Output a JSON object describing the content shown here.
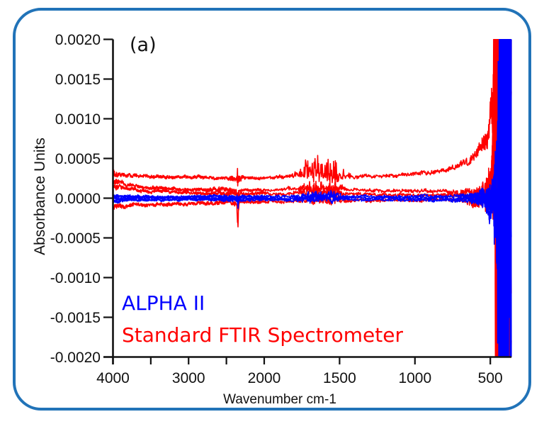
{
  "figure": {
    "panel_label": "(a)",
    "border_color": "#2173b8",
    "background": "#ffffff"
  },
  "chart_data": {
    "type": "line",
    "title": "",
    "panel_label": "(a)",
    "xlabel": "Wavenumber cm-1",
    "ylabel": "Absorbance Units",
    "x_axis": {
      "ticks": [
        4000,
        3500,
        3000,
        2500,
        2000,
        1500,
        1000,
        500
      ],
      "labeled_ticks": [
        4000,
        3000,
        2000,
        1500,
        1000,
        500
      ],
      "tick_labels": [
        "4000",
        "3000",
        "2000",
        "1500",
        "1000",
        "500"
      ],
      "range": [
        4000,
        360
      ],
      "split_at": 2000,
      "scale_note": "wavenumber axis compressed 2x above 2000 cm-1 (OPUS-style split scale)"
    },
    "y_axis": {
      "ticks": [
        0.002,
        0.0015,
        0.001,
        0.0005,
        0.0,
        -0.0005,
        -0.001,
        -0.0015,
        -0.002
      ],
      "tick_labels": [
        "0.0020",
        "0.0015",
        "0.0010",
        "0.0005",
        "0.0000",
        "-0.0005",
        "-0.0010",
        "-0.0015",
        "-0.0020"
      ],
      "range": [
        -0.002,
        0.002
      ]
    },
    "legend": [
      {
        "label": "ALPHA II",
        "color": "#0000ff"
      },
      {
        "label": "Standard FTIR Spectrometer",
        "color": "#ff0000"
      }
    ],
    "grid": false,
    "series": [
      {
        "name": "Standard FTIR Spectrometer",
        "color": "#ff0000",
        "traces": [
          {
            "seed": 101,
            "baseline": [
              [
                4000,
                0.00033
              ],
              [
                3850,
                0.00029
              ],
              [
                3600,
                0.00028
              ],
              [
                3200,
                0.00027
              ],
              [
                2800,
                0.00026
              ],
              [
                2400,
                0.000245
              ],
              [
                2100,
                0.00025
              ],
              [
                2000,
                0.00026
              ],
              [
                1900,
                0.00027
              ],
              [
                1750,
                0.00028
              ],
              [
                1600,
                0.00028
              ],
              [
                1450,
                0.000265
              ],
              [
                1300,
                0.00027
              ],
              [
                1150,
                0.000275
              ],
              [
                1000,
                0.0003
              ],
              [
                900,
                0.00032
              ],
              [
                800,
                0.00037
              ],
              [
                700,
                0.00043
              ],
              [
                640,
                0.0005
              ],
              [
                590,
                0.00058
              ],
              [
                545,
                0.00068
              ],
              [
                510,
                0.00082
              ],
              [
                490,
                0.001
              ],
              [
                475,
                0.0013
              ],
              [
                463,
                0.0019
              ],
              [
                458,
                0.0005
              ],
              [
                360,
                0
              ]
            ],
            "noise_envelope": [
              [
                4000,
                5.5e-05
              ],
              [
                3880,
                3e-05
              ],
              [
                3400,
                2.5e-05
              ],
              [
                2500,
                2.2e-05
              ],
              [
                2380,
                5e-05
              ],
              [
                2320,
                5e-05
              ],
              [
                2250,
                2.2e-05
              ],
              [
                2000,
                2.2e-05
              ],
              [
                1900,
                3e-05
              ],
              [
                1800,
                3.5e-05
              ],
              [
                1700,
                4e-05
              ],
              [
                1450,
                3.5e-05
              ],
              [
                1250,
                2.5e-05
              ],
              [
                1000,
                3e-05
              ],
              [
                850,
                3.5e-05
              ],
              [
                700,
                5e-05
              ],
              [
                600,
                8e-05
              ],
              [
                550,
                0.00012
              ],
              [
                510,
                0.0002
              ],
              [
                488,
                0.0004
              ],
              [
                470,
                0.0012
              ],
              [
                462,
                0.0045
              ],
              [
                360,
                0.0045
              ]
            ],
            "features": {
              "co2": 9e-05,
              "water": 0.00013
            }
          },
          {
            "seed": 202,
            "baseline": [
              [
                4000,
                0.00023
              ],
              [
                3800,
                0.00016
              ],
              [
                3500,
                0.00013
              ],
              [
                3100,
                0.00011
              ],
              [
                2600,
                0.000105
              ],
              [
                2200,
                0.0001
              ],
              [
                2000,
                0.000105
              ],
              [
                1700,
                0.00012
              ],
              [
                1500,
                0.000115
              ],
              [
                1200,
                0.0001
              ],
              [
                1000,
                9e-05
              ],
              [
                800,
                8e-05
              ],
              [
                650,
                8e-05
              ],
              [
                560,
                0.0001
              ],
              [
                500,
                0.00012
              ],
              [
                470,
                0.0003
              ],
              [
                460,
                0
              ],
              [
                360,
                0
              ]
            ],
            "noise_envelope": [
              [
                4000,
                5e-05
              ],
              [
                3880,
                2.8e-05
              ],
              [
                3000,
                2.2e-05
              ],
              [
                2380,
                4e-05
              ],
              [
                2250,
                2e-05
              ],
              [
                2000,
                2e-05
              ],
              [
                1800,
                2.8e-05
              ],
              [
                1450,
                2.8e-05
              ],
              [
                1100,
                2.2e-05
              ],
              [
                800,
                3e-05
              ],
              [
                650,
                5e-05
              ],
              [
                560,
                0.0001
              ],
              [
                500,
                0.00025
              ],
              [
                475,
                0.0009
              ],
              [
                460,
                0.0045
              ],
              [
                360,
                0.0045
              ]
            ],
            "features": {
              "co2": -0.00013,
              "water": 6e-05
            }
          },
          {
            "seed": 303,
            "baseline": [
              [
                4000,
                0.00015
              ],
              [
                3700,
                0.0001
              ],
              [
                3300,
                8e-05
              ],
              [
                2800,
                6e-05
              ],
              [
                2300,
                5.5e-05
              ],
              [
                2000,
                6e-05
              ],
              [
                1600,
                6.5e-05
              ],
              [
                1300,
                5e-05
              ],
              [
                1000,
                4e-05
              ],
              [
                800,
                3.5e-05
              ],
              [
                650,
                4e-05
              ],
              [
                550,
                5e-05
              ],
              [
                480,
                0.0001
              ],
              [
                465,
                0
              ],
              [
                360,
                0
              ]
            ],
            "noise_envelope": [
              [
                4000,
                4.5e-05
              ],
              [
                3880,
                2.6e-05
              ],
              [
                3000,
                2e-05
              ],
              [
                2380,
                3.5e-05
              ],
              [
                2250,
                2e-05
              ],
              [
                1800,
                2.6e-05
              ],
              [
                1400,
                2.4e-05
              ],
              [
                1000,
                2.2e-05
              ],
              [
                800,
                3e-05
              ],
              [
                650,
                5e-05
              ],
              [
                560,
                9e-05
              ],
              [
                500,
                0.0002
              ],
              [
                478,
                0.0008
              ],
              [
                464,
                0.0045
              ],
              [
                360,
                0.0045
              ]
            ],
            "features": {
              "co2": -9e-05,
              "water": 5e-05
            }
          },
          {
            "seed": 404,
            "baseline": [
              [
                4000,
                -0.00011
              ],
              [
                3700,
                -9e-05
              ],
              [
                3300,
                -8e-05
              ],
              [
                2800,
                -6.5e-05
              ],
              [
                2400,
                -6e-05
              ],
              [
                2000,
                -4e-05
              ],
              [
                1700,
                -4.5e-05
              ],
              [
                1400,
                -4e-05
              ],
              [
                1100,
                -3e-05
              ],
              [
                900,
                -2.5e-05
              ],
              [
                700,
                -2e-05
              ],
              [
                560,
                -3e-05
              ],
              [
                480,
                -0.0001
              ],
              [
                466,
                0
              ],
              [
                360,
                0
              ]
            ],
            "noise_envelope": [
              [
                4000,
                5e-05
              ],
              [
                3880,
                2.8e-05
              ],
              [
                3000,
                2.2e-05
              ],
              [
                2380,
                4e-05
              ],
              [
                2250,
                2.2e-05
              ],
              [
                1800,
                2.6e-05
              ],
              [
                1400,
                2.4e-05
              ],
              [
                1000,
                2.4e-05
              ],
              [
                800,
                3e-05
              ],
              [
                650,
                5e-05
              ],
              [
                560,
                9e-05
              ],
              [
                500,
                0.00022
              ],
              [
                478,
                0.0009
              ],
              [
                463,
                0.0045
              ],
              [
                360,
                0.0045
              ]
            ],
            "features": {
              "co2": -0.00024,
              "water": 4e-05
            }
          }
        ]
      },
      {
        "name": "ALPHA II",
        "color": "#0000ff",
        "traces": [
          {
            "seed": 11,
            "baseline": [
              [
                4000,
                2.5e-05
              ],
              [
                3000,
                2e-05
              ],
              [
                2000,
                1.8e-05
              ],
              [
                1000,
                2e-05
              ],
              [
                600,
                2.5e-05
              ],
              [
                470,
                5e-05
              ],
              [
                445,
                0
              ],
              [
                360,
                0
              ]
            ],
            "noise_envelope": [
              [
                4000,
                3e-05
              ],
              [
                3850,
                2e-05
              ],
              [
                3000,
                1.8e-05
              ],
              [
                2380,
                2.6e-05
              ],
              [
                2250,
                1.8e-05
              ],
              [
                1800,
                2.2e-05
              ],
              [
                1400,
                2e-05
              ],
              [
                1000,
                2.2e-05
              ],
              [
                800,
                2.8e-05
              ],
              [
                650,
                4e-05
              ],
              [
                580,
                7e-05
              ],
              [
                520,
                0.00015
              ],
              [
                480,
                0.0004
              ],
              [
                455,
                0.0009
              ],
              [
                438,
                0.0045
              ],
              [
                360,
                0.0045
              ]
            ],
            "features": {
              "co2": -4e-05,
              "water": 3e-05
            }
          },
          {
            "seed": 12,
            "baseline": [
              [
                4000,
                5e-06
              ],
              [
                2000,
                0
              ],
              [
                800,
                5e-06
              ],
              [
                445,
                0
              ],
              [
                360,
                0
              ]
            ],
            "noise_envelope": [
              [
                4000,
                3e-05
              ],
              [
                3850,
                2e-05
              ],
              [
                3000,
                1.8e-05
              ],
              [
                2380,
                2.6e-05
              ],
              [
                2250,
                1.8e-05
              ],
              [
                1800,
                2.2e-05
              ],
              [
                1400,
                2e-05
              ],
              [
                1000,
                2.2e-05
              ],
              [
                800,
                2.8e-05
              ],
              [
                650,
                4e-05
              ],
              [
                580,
                7e-05
              ],
              [
                520,
                0.00015
              ],
              [
                480,
                0.0004
              ],
              [
                455,
                0.0009
              ],
              [
                436,
                0.0045
              ],
              [
                360,
                0.0045
              ]
            ],
            "features": {
              "co2": -5e-05,
              "water": 2.5e-05
            }
          },
          {
            "seed": 13,
            "baseline": [
              [
                4000,
                -2.5e-05
              ],
              [
                3000,
                -2e-05
              ],
              [
                2000,
                -1.8e-05
              ],
              [
                1000,
                -2e-05
              ],
              [
                600,
                -2.5e-05
              ],
              [
                470,
                -5e-05
              ],
              [
                445,
                0
              ],
              [
                360,
                0
              ]
            ],
            "noise_envelope": [
              [
                4000,
                3e-05
              ],
              [
                3850,
                2e-05
              ],
              [
                3000,
                1.8e-05
              ],
              [
                2380,
                2.6e-05
              ],
              [
                2250,
                1.8e-05
              ],
              [
                1800,
                2.2e-05
              ],
              [
                1400,
                2e-05
              ],
              [
                1000,
                2.2e-05
              ],
              [
                800,
                2.8e-05
              ],
              [
                650,
                4e-05
              ],
              [
                580,
                7e-05
              ],
              [
                520,
                0.00015
              ],
              [
                480,
                0.0004
              ],
              [
                455,
                0.0009
              ],
              [
                440,
                0.0045
              ],
              [
                360,
                0.0045
              ]
            ],
            "features": {
              "co2": -3e-05,
              "water": 2e-05
            }
          }
        ]
      }
    ]
  }
}
